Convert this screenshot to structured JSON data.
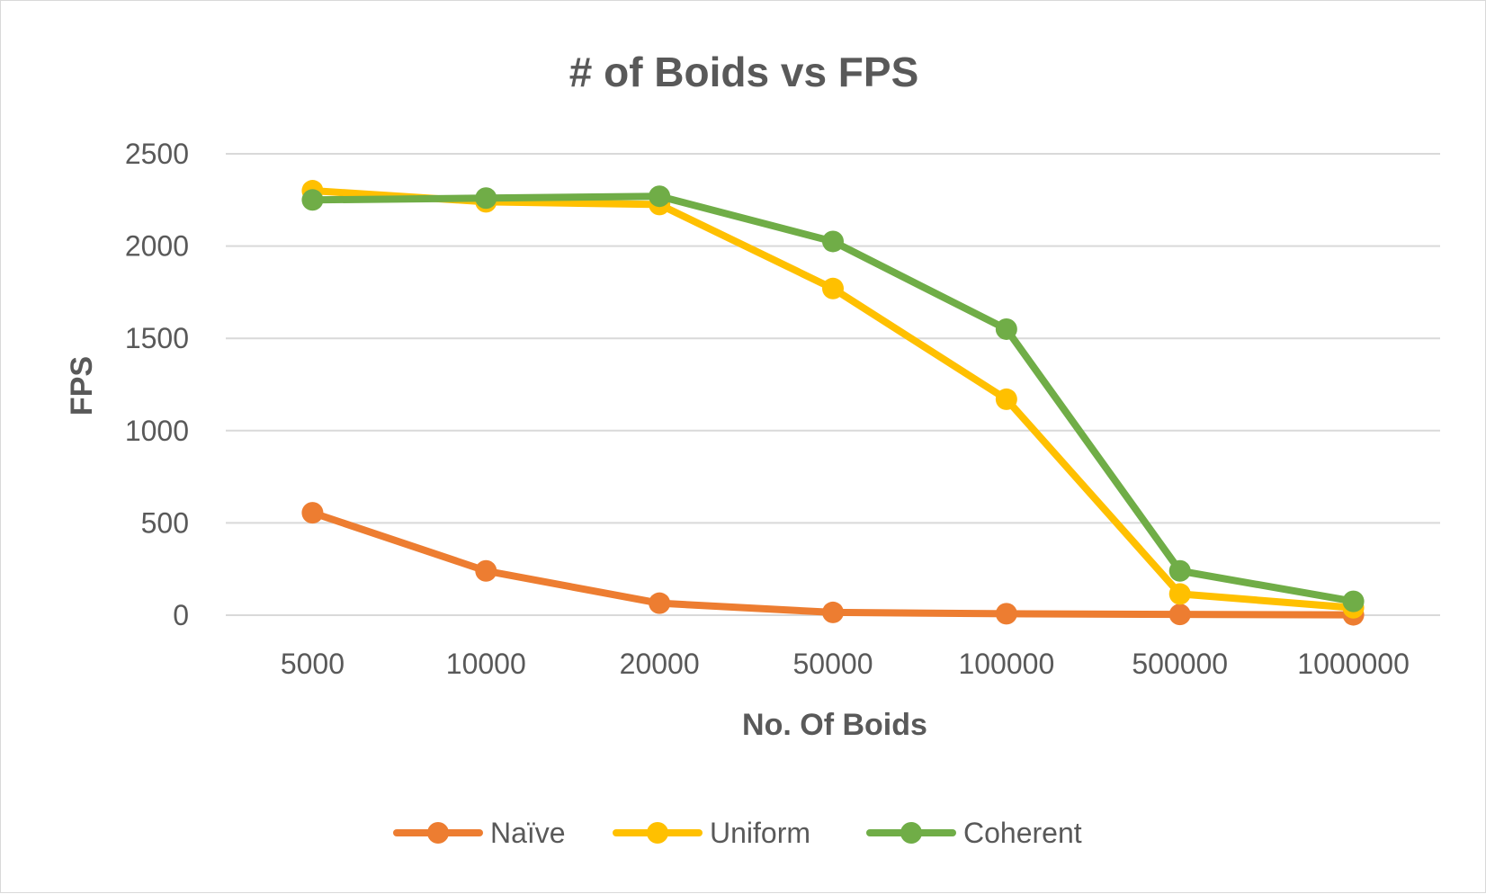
{
  "chart_data": {
    "type": "line",
    "title": "# of Boids vs FPS",
    "xlabel": "No. Of Boids",
    "ylabel": "FPS",
    "categories": [
      "5000",
      "10000",
      "20000",
      "50000",
      "100000",
      "500000",
      "1000000"
    ],
    "ylim": [
      0,
      2500
    ],
    "yticks": [
      "0",
      "500",
      "1000",
      "1500",
      "2000",
      "2500"
    ],
    "grid": "horizontal",
    "legend_position": "bottom",
    "series": [
      {
        "name": "Naïve",
        "color": "#ED7D31",
        "values": [
          555,
          240,
          65,
          15,
          8,
          4,
          2
        ]
      },
      {
        "name": "Uniform",
        "color": "#FFC000",
        "values": [
          2300,
          2240,
          2225,
          1770,
          1170,
          115,
          40
        ]
      },
      {
        "name": "Coherent",
        "color": "#70AD47",
        "values": [
          2250,
          2260,
          2270,
          2025,
          1550,
          240,
          75
        ]
      }
    ]
  }
}
